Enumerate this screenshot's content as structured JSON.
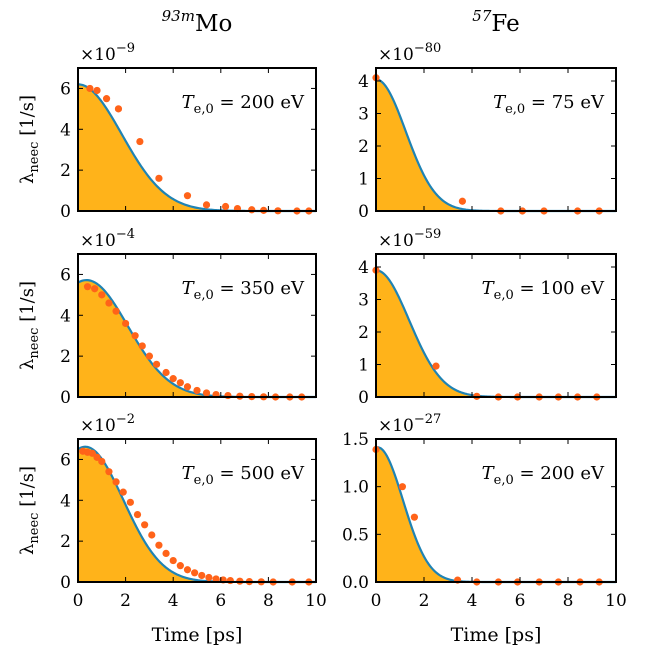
{
  "columns": [
    {
      "element": "93mMo"
    },
    {
      "element": "57Fe"
    }
  ],
  "colors": {
    "fill": "#FFB31A",
    "line": "#1F83B4",
    "marker": "#FF6319"
  },
  "chart_data": [
    {
      "type": "area",
      "panel_id": "mo-1",
      "column_label_mass": "93m",
      "column_label_symbol": "Mo",
      "annotation": "T_e,0 = 200 eV",
      "annotation_sub": "e,0",
      "annotation_value": "= 200 eV",
      "multiplier": "×10",
      "multiplier_exp": "−9",
      "ylabel": "λ_neec [1/s]",
      "xlabel": "",
      "xlim": [
        0,
        10
      ],
      "ylim": [
        0,
        7
      ],
      "xticks": [
        "0",
        "2",
        "4",
        "6",
        "8",
        "10"
      ],
      "xticks_shown": false,
      "yticks": [
        "0",
        "2",
        "4",
        "6"
      ],
      "ytick_values": [
        0,
        2,
        4,
        6
      ],
      "curve_y0": 6.2,
      "curve_a": 0.0,
      "curve_tau": 2.6,
      "points": {
        "x": [
          0.5,
          0.8,
          1.2,
          1.7,
          2.6,
          3.4,
          4.6,
          5.4,
          6.2,
          6.7,
          7.3,
          7.8,
          8.4,
          9.2,
          9.7
        ],
        "y": [
          6.0,
          5.9,
          5.5,
          5.0,
          3.4,
          1.6,
          0.75,
          0.3,
          0.22,
          0.12,
          0.06,
          0.03,
          0.01,
          0.0,
          0.0
        ]
      }
    },
    {
      "type": "area",
      "panel_id": "fe-1",
      "column_label_mass": "57",
      "column_label_symbol": "Fe",
      "annotation": "T_e,0 = 75 eV",
      "annotation_sub": "e,0",
      "annotation_value": "= 75 eV",
      "multiplier": "×10",
      "multiplier_exp": "−80",
      "ylabel": "",
      "xlabel": "",
      "xlim": [
        0,
        10
      ],
      "ylim": [
        0,
        4.4
      ],
      "xticks": [
        "0",
        "2",
        "4",
        "6",
        "8",
        "10"
      ],
      "xticks_shown": false,
      "yticks": [
        "0",
        "1",
        "2",
        "3",
        "4"
      ],
      "ytick_values": [
        0,
        1,
        2,
        3,
        4
      ],
      "curve_y0": 4.05,
      "curve_a": 0.0,
      "curve_tau": 1.75,
      "points": {
        "x": [
          0.0,
          3.6,
          5.2,
          6.1,
          7.0,
          8.4,
          9.3
        ],
        "y": [
          4.1,
          0.3,
          0.0,
          0.0,
          0.0,
          0.0,
          0.0
        ]
      }
    },
    {
      "type": "area",
      "panel_id": "mo-2",
      "annotation": "T_e,0 = 350 eV",
      "annotation_sub": "e,0",
      "annotation_value": "= 350 eV",
      "multiplier": "×10",
      "multiplier_exp": "−4",
      "ylabel": "λ_neec [1/s]",
      "xlabel": "",
      "xlim": [
        0,
        10
      ],
      "ylim": [
        0,
        7
      ],
      "xticks": [
        "0",
        "2",
        "4",
        "6",
        "8",
        "10"
      ],
      "xticks_shown": false,
      "yticks": [
        "0",
        "2",
        "4",
        "6"
      ],
      "ytick_values": [
        0,
        2,
        4,
        6
      ],
      "curve_y0": 5.6,
      "curve_a": 0.12,
      "curve_tau": 2.5,
      "points": {
        "x": [
          0.4,
          0.7,
          1.0,
          1.3,
          1.6,
          2.0,
          2.4,
          2.7,
          3.0,
          3.3,
          3.7,
          4.0,
          4.3,
          4.6,
          5.0,
          5.4,
          5.8,
          6.3,
          6.8,
          7.3,
          7.8,
          8.3,
          8.9,
          9.4
        ],
        "y": [
          5.4,
          5.3,
          5.0,
          4.6,
          4.2,
          3.6,
          3.0,
          2.5,
          2.0,
          1.6,
          1.2,
          0.9,
          0.7,
          0.5,
          0.32,
          0.2,
          0.12,
          0.07,
          0.04,
          0.02,
          0.01,
          0.0,
          0.0,
          0.0
        ]
      }
    },
    {
      "type": "area",
      "panel_id": "fe-2",
      "annotation": "T_e,0 = 100 eV",
      "annotation_sub": "e,0",
      "annotation_value": "= 100 eV",
      "multiplier": "×10",
      "multiplier_exp": "−59",
      "ylabel": "",
      "xlabel": "",
      "xlim": [
        0,
        10
      ],
      "ylim": [
        0,
        4.4
      ],
      "xticks": [
        "0",
        "2",
        "4",
        "6",
        "8",
        "10"
      ],
      "xticks_shown": false,
      "yticks": [
        "0",
        "1",
        "2",
        "3",
        "4"
      ],
      "ytick_values": [
        0,
        1,
        2,
        3,
        4
      ],
      "curve_y0": 3.9,
      "curve_a": 0.0,
      "curve_tau": 1.95,
      "points": {
        "x": [
          0.0,
          2.5,
          4.2,
          5.1,
          5.9,
          6.8,
          7.6,
          8.4,
          9.2
        ],
        "y": [
          3.9,
          0.95,
          0.02,
          0.0,
          0.0,
          0.0,
          0.0,
          0.0,
          0.0
        ]
      }
    },
    {
      "type": "area",
      "panel_id": "mo-3",
      "annotation": "T_e,0 = 500 eV",
      "annotation_sub": "e,0",
      "annotation_value": "= 500 eV",
      "multiplier": "×10",
      "multiplier_exp": "−2",
      "ylabel": "λ_neec [1/s]",
      "xlabel": "Time [ps]",
      "xlim": [
        0,
        10
      ],
      "ylim": [
        0,
        7
      ],
      "xticks": [
        "0",
        "2",
        "4",
        "6",
        "8",
        "10"
      ],
      "xticks_shown": true,
      "yticks": [
        "0",
        "2",
        "4",
        "6"
      ],
      "ytick_values": [
        0,
        2,
        4,
        6
      ],
      "curve_y0": 6.5,
      "curve_a": 0.12,
      "curve_tau": 2.3,
      "points": {
        "x": [
          0.2,
          0.4,
          0.6,
          0.8,
          1.0,
          1.3,
          1.6,
          1.9,
          2.2,
          2.5,
          2.8,
          3.1,
          3.4,
          3.7,
          4.0,
          4.3,
          4.6,
          4.9,
          5.2,
          5.5,
          5.8,
          6.1,
          6.4,
          6.8,
          7.2,
          7.7,
          8.2,
          9.0,
          9.7
        ],
        "y": [
          6.4,
          6.35,
          6.3,
          6.1,
          5.9,
          5.4,
          4.9,
          4.4,
          3.9,
          3.3,
          2.8,
          2.3,
          1.8,
          1.4,
          1.05,
          0.8,
          0.6,
          0.45,
          0.32,
          0.22,
          0.15,
          0.1,
          0.07,
          0.04,
          0.02,
          0.01,
          0.0,
          0.0,
          0.0
        ]
      }
    },
    {
      "type": "area",
      "panel_id": "fe-3",
      "annotation": "T_e,0 = 200 eV",
      "annotation_sub": "e,0",
      "annotation_value": "= 200 eV",
      "multiplier": "×10",
      "multiplier_exp": "−27",
      "ylabel": "",
      "xlabel": "Time [ps]",
      "xlim": [
        0,
        10
      ],
      "ylim": [
        0,
        1.5
      ],
      "xticks": [
        "0",
        "2",
        "4",
        "6",
        "8",
        "10"
      ],
      "xticks_shown": true,
      "yticks": [
        "0.0",
        "0.5",
        "1.0",
        "1.5"
      ],
      "ytick_values": [
        0,
        0.5,
        1.0,
        1.5
      ],
      "curve_y0": 1.41,
      "curve_a": 0.06,
      "curve_tau": 1.5,
      "points": {
        "x": [
          0.0,
          1.1,
          1.6,
          3.4,
          4.2,
          5.1,
          5.9,
          6.8,
          7.6,
          8.5,
          9.3
        ],
        "y": [
          1.39,
          1.0,
          0.68,
          0.02,
          0.0,
          0.0,
          0.0,
          0.0,
          0.0,
          0.0,
          0.0
        ]
      }
    }
  ]
}
